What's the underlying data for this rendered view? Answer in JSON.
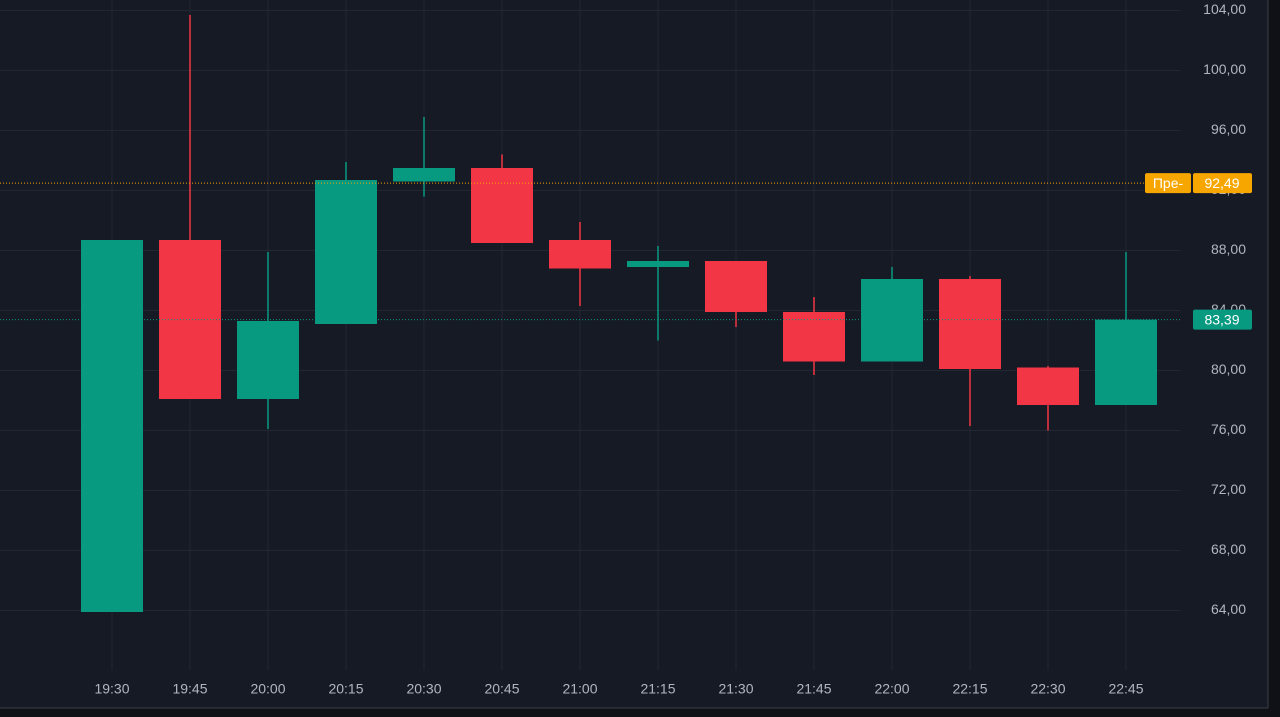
{
  "chart_data": {
    "type": "candlestick",
    "categories": [
      "19:30",
      "19:45",
      "20:00",
      "20:15",
      "20:30",
      "20:45",
      "21:00",
      "21:15",
      "21:30",
      "21:45",
      "22:00",
      "22:15",
      "22:30",
      "22:45"
    ],
    "open": [
      63.9,
      88.7,
      78.1,
      83.1,
      92.6,
      93.5,
      88.7,
      86.9,
      87.3,
      83.9,
      80.6,
      86.1,
      80.2,
      77.7
    ],
    "high": [
      88.7,
      103.7,
      87.9,
      93.9,
      96.9,
      94.4,
      89.9,
      88.3,
      87.3,
      84.9,
      86.9,
      86.3,
      80.3,
      87.9
    ],
    "low": [
      63.9,
      78.1,
      76.1,
      83.1,
      91.6,
      88.5,
      84.3,
      82.0,
      82.9,
      79.7,
      80.6,
      76.3,
      76.0,
      77.7
    ],
    "close": [
      88.7,
      78.1,
      83.3,
      92.7,
      93.5,
      88.5,
      86.8,
      87.3,
      83.9,
      80.6,
      86.1,
      80.1,
      77.7,
      83.39
    ],
    "up_color": "#089981",
    "down_color": "#f23645",
    "ylim": [
      60.7,
      104.7
    ],
    "yticks": [
      {
        "value": 64,
        "label": "64,00"
      },
      {
        "value": 68,
        "label": "68,00"
      },
      {
        "value": 72,
        "label": "72,00"
      },
      {
        "value": 76,
        "label": "76,00"
      },
      {
        "value": 80,
        "label": "80,00"
      },
      {
        "value": 84,
        "label": "84,00"
      },
      {
        "value": 88,
        "label": "88,00"
      },
      {
        "value": 92,
        "label": "92,00"
      },
      {
        "value": 96,
        "label": "96,00"
      },
      {
        "value": 100,
        "label": "100,00"
      },
      {
        "value": 104,
        "label": "104,00"
      }
    ],
    "grid": true,
    "price_lines": [
      {
        "label": "Пре-",
        "value": 92.49,
        "value_label": "92,49",
        "color": "#f7a600"
      },
      {
        "value": 83.39,
        "value_label": "83,39",
        "color": "#089981"
      }
    ]
  }
}
